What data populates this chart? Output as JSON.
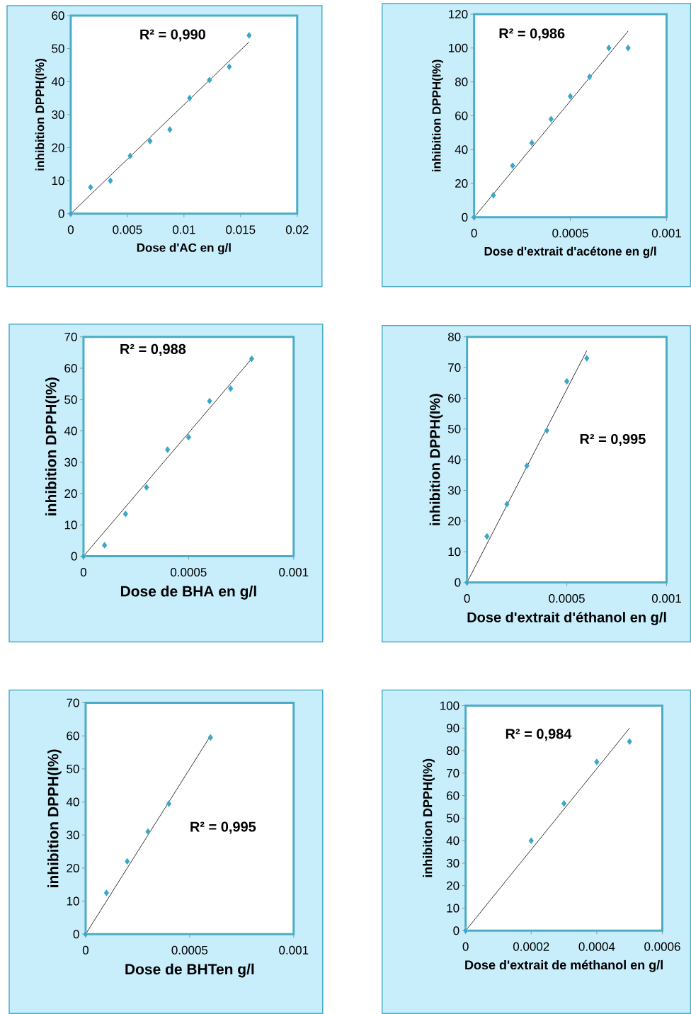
{
  "chart_data": [
    {
      "type": "scatter",
      "xlabel": "Dose d'AC en g/l",
      "ylabel": "inhibition DPPH(I%)",
      "annotations": [
        "R² = 0,990"
      ],
      "xlim": [
        0,
        0.02
      ],
      "ylim": [
        0,
        60
      ],
      "xticks": [
        0,
        0.005,
        0.01,
        0.015,
        0.02
      ],
      "yticks": [
        0,
        10,
        20,
        30,
        40,
        50,
        60
      ],
      "series": [
        {
          "type": "scatter",
          "marker": "diamond",
          "color": "#3aa6c8",
          "x": [
            0,
            0.00175,
            0.0035,
            0.00525,
            0.007,
            0.00875,
            0.0105,
            0.01225,
            0.014,
            0.01575
          ],
          "values": [
            0,
            8,
            10,
            17.5,
            22,
            25.5,
            35,
            40.5,
            44.5,
            54
          ]
        },
        {
          "type": "line",
          "color": "#000000",
          "x": [
            0,
            0.01575
          ],
          "values": [
            0,
            52
          ]
        }
      ]
    },
    {
      "type": "scatter",
      "xlabel": "Dose d'extrait d'acétone en g/l",
      "ylabel": "inhibition DPPH(I%)",
      "annotations": [
        "R² = 0,986"
      ],
      "xlim": [
        0,
        0.001
      ],
      "ylim": [
        0,
        120
      ],
      "xticks": [
        0,
        0.0005,
        0.001
      ],
      "yticks": [
        0,
        20,
        40,
        60,
        80,
        100,
        120
      ],
      "series": [
        {
          "type": "scatter",
          "marker": "diamond",
          "color": "#3aa6c8",
          "x": [
            0,
            0.0001,
            0.0002,
            0.0003,
            0.0004,
            0.0005,
            0.0006,
            0.0007,
            0.0008
          ],
          "values": [
            0,
            13,
            30.5,
            44,
            58,
            71.5,
            83,
            100,
            100
          ]
        },
        {
          "type": "line",
          "color": "#000000",
          "x": [
            0,
            0.0008
          ],
          "values": [
            0,
            110
          ]
        }
      ]
    },
    {
      "type": "scatter",
      "xlabel": "Dose de BHA en g/l",
      "ylabel": "inhibition DPPH(I%)",
      "annotations": [
        "R² = 0,988"
      ],
      "xlim": [
        0,
        0.001
      ],
      "ylim": [
        0,
        70
      ],
      "xticks": [
        0,
        0.0005,
        0.001
      ],
      "yticks": [
        0,
        10,
        20,
        30,
        40,
        50,
        60,
        70
      ],
      "series": [
        {
          "type": "scatter",
          "marker": "diamond",
          "color": "#3aa6c8",
          "x": [
            0,
            0.0001,
            0.0002,
            0.0003,
            0.0004,
            0.0005,
            0.0006,
            0.0007,
            0.0008
          ],
          "values": [
            0,
            3.5,
            13.5,
            22,
            34,
            38,
            49.5,
            53.5,
            63
          ]
        },
        {
          "type": "line",
          "color": "#000000",
          "x": [
            0,
            0.0008
          ],
          "values": [
            0,
            63
          ]
        }
      ]
    },
    {
      "type": "scatter",
      "xlabel": "Dose d'extrait d'éthanol en g/l",
      "ylabel": "inhibition DPPH(I%)",
      "annotations": [
        "R² = 0,995"
      ],
      "xlim": [
        0,
        0.001
      ],
      "ylim": [
        0,
        80
      ],
      "xticks": [
        0,
        0.0005,
        0.001
      ],
      "yticks": [
        0,
        10,
        20,
        30,
        40,
        50,
        60,
        70,
        80
      ],
      "series": [
        {
          "type": "scatter",
          "marker": "diamond",
          "color": "#3aa6c8",
          "x": [
            0,
            0.0001,
            0.0002,
            0.0003,
            0.0004,
            0.0005,
            0.0006
          ],
          "values": [
            0,
            15,
            25.5,
            38,
            49.5,
            65.5,
            73
          ]
        },
        {
          "type": "line",
          "color": "#000000",
          "x": [
            0,
            0.0006
          ],
          "values": [
            0,
            75.5
          ]
        }
      ]
    },
    {
      "type": "scatter",
      "xlabel": "Dose de BHTen g/l",
      "ylabel": "inhibition DPPH(I%)",
      "annotations": [
        "R² = 0,995"
      ],
      "xlim": [
        0,
        0.001
      ],
      "ylim": [
        0,
        70
      ],
      "xticks": [
        0,
        0.0005,
        0.001
      ],
      "yticks": [
        0,
        10,
        20,
        30,
        40,
        50,
        60,
        70
      ],
      "series": [
        {
          "type": "scatter",
          "marker": "diamond",
          "color": "#3aa6c8",
          "x": [
            0,
            0.0001,
            0.0002,
            0.0003,
            0.0004,
            0.0006
          ],
          "values": [
            0,
            12.5,
            22,
            31,
            39.5,
            59.5
          ]
        },
        {
          "type": "line",
          "color": "#000000",
          "x": [
            0,
            0.0006
          ],
          "values": [
            0,
            60
          ]
        }
      ]
    },
    {
      "type": "scatter",
      "xlabel": "Dose d'extrait de méthanol en g/l",
      "ylabel": "inhibition DPPH(I%)",
      "annotations": [
        "R² = 0,984"
      ],
      "xlim": [
        0,
        0.0006
      ],
      "ylim": [
        0,
        100
      ],
      "xticks": [
        0,
        0.0002,
        0.0004,
        0.0006
      ],
      "yticks": [
        0,
        10,
        20,
        30,
        40,
        50,
        60,
        70,
        80,
        90,
        100
      ],
      "series": [
        {
          "type": "scatter",
          "marker": "diamond",
          "color": "#3aa6c8",
          "x": [
            0,
            0.0002,
            0.0003,
            0.0004,
            0.0005
          ],
          "values": [
            0,
            40,
            56.5,
            75,
            84
          ]
        },
        {
          "type": "line",
          "color": "#000000",
          "x": [
            0,
            0.0005
          ],
          "values": [
            0,
            90
          ]
        }
      ]
    }
  ]
}
